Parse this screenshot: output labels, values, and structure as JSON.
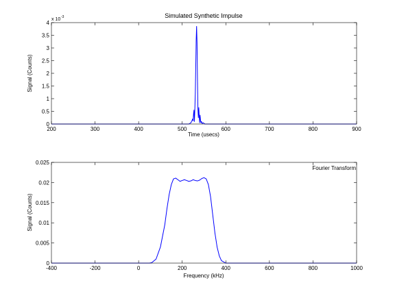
{
  "chart_data": [
    {
      "type": "line",
      "title": "Simulated Synthetic Impulse",
      "xlabel": "Time (usecs)",
      "ylabel": "Signal (Counts)",
      "xlim": [
        200,
        900
      ],
      "ylim": [
        0,
        4
      ],
      "y_exponent_label": "x 10",
      "y_exponent_power": "-3",
      "xticks": [
        200,
        300,
        400,
        500,
        600,
        700,
        800,
        900
      ],
      "yticks": [
        0,
        0.5,
        1,
        1.5,
        2,
        2.5,
        3,
        3.5,
        4
      ],
      "grid": false,
      "series": [
        {
          "color": "#0000ff",
          "x": [
            200,
            515,
            520,
            522,
            524,
            525,
            526,
            527,
            528,
            529,
            530,
            531,
            532,
            533,
            534,
            535,
            536,
            537,
            538,
            539,
            540,
            541,
            542,
            543,
            544,
            546,
            548,
            552,
            900
          ],
          "y": [
            0,
            0,
            0.05,
            0.12,
            0.2,
            0.12,
            0.4,
            0.55,
            0.1,
            0.6,
            1.2,
            2.2,
            3.3,
            3.85,
            3.2,
            1.8,
            0.6,
            0.25,
            0.65,
            0.3,
            0.05,
            0.35,
            0.15,
            0.05,
            0.1,
            0.02,
            0.05,
            0,
            0
          ]
        }
      ]
    },
    {
      "type": "line",
      "title": "",
      "legend": "Fourier Transform",
      "legend_position": "top-right",
      "xlabel": "Frequency (kHz)",
      "ylabel": "Signal (Counts)",
      "xlim": [
        -400,
        1000
      ],
      "ylim": [
        0,
        0.025
      ],
      "xticks": [
        -400,
        -200,
        0,
        200,
        400,
        600,
        800,
        1000
      ],
      "yticks": [
        0,
        0.005,
        0.01,
        0.015,
        0.02,
        0.025
      ],
      "grid": false,
      "series": [
        {
          "color": "#0000ff",
          "x": [
            -400,
            50,
            60,
            80,
            100,
            120,
            130,
            140,
            150,
            160,
            170,
            180,
            190,
            200,
            210,
            220,
            230,
            240,
            250,
            260,
            270,
            280,
            290,
            300,
            310,
            320,
            330,
            340,
            350,
            360,
            370,
            380,
            400,
            1000
          ],
          "y": [
            0,
            0,
            0.0001,
            0.001,
            0.004,
            0.0095,
            0.0135,
            0.017,
            0.0195,
            0.0209,
            0.0211,
            0.0207,
            0.0203,
            0.0205,
            0.0207,
            0.0205,
            0.0203,
            0.0204,
            0.0207,
            0.0205,
            0.0204,
            0.0206,
            0.021,
            0.0212,
            0.0209,
            0.0195,
            0.0165,
            0.012,
            0.0075,
            0.004,
            0.0018,
            0.0006,
            0,
            0
          ]
        }
      ]
    }
  ]
}
